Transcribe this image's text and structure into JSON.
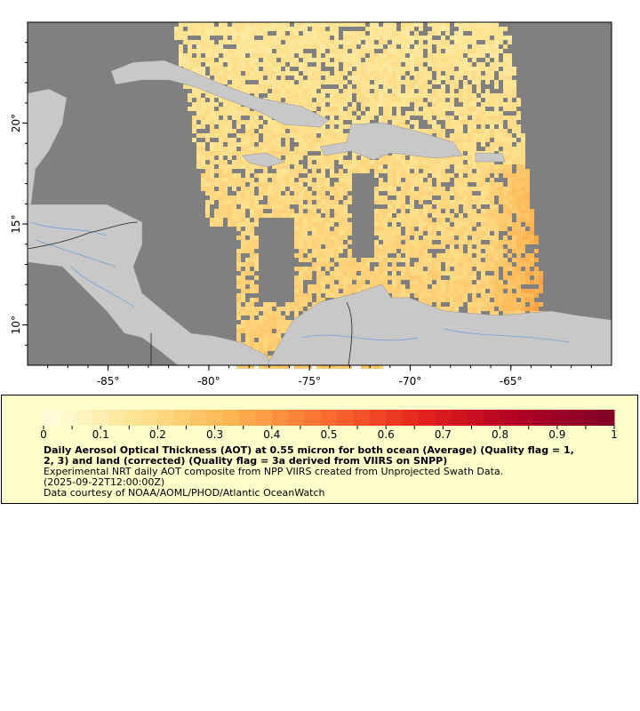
{
  "map": {
    "lon_range": [
      -89,
      -60
    ],
    "lat_range": [
      8,
      25
    ],
    "lon_ticks": [
      "-85°",
      "-80°",
      "-75°",
      "-70°",
      "-65°"
    ],
    "lat_ticks": [
      "20°",
      "15°",
      "10°"
    ],
    "colors": {
      "ocean_nodata": "#808080",
      "land": "#c8c8c8",
      "rivers": "#6fa3dc",
      "borders": "#707070"
    }
  },
  "legend": {
    "colorbar_range": [
      0,
      1
    ],
    "colorbar_ticks": [
      "0",
      "0.1",
      "0.2",
      "0.3",
      "0.4",
      "0.5",
      "0.6",
      "0.7",
      "0.8",
      "0.9",
      "1"
    ],
    "colormap": [
      "#ffffe0",
      "#fee391",
      "#fdb450",
      "#fc6a2f",
      "#e3211c",
      "#b10026",
      "#800026"
    ],
    "title_line1": "Daily Aerosol Optical Thickness (AOT) at 0.55 micron for both ocean (Average) (Quality flag = 1,",
    "title_line2": "2, 3) and land (corrected) (Quality flag = 3a derived from VIIRS on SNPP)",
    "subtitle": "Experimental NRT daily AOT composite from NPP VIIRS created from Unprojected Swath Data.",
    "time": "(2025-09-22T12:00:00Z)",
    "credit": "Data courtesy of NOAA/AOML/PHOD/Atlantic OceanWatch"
  }
}
